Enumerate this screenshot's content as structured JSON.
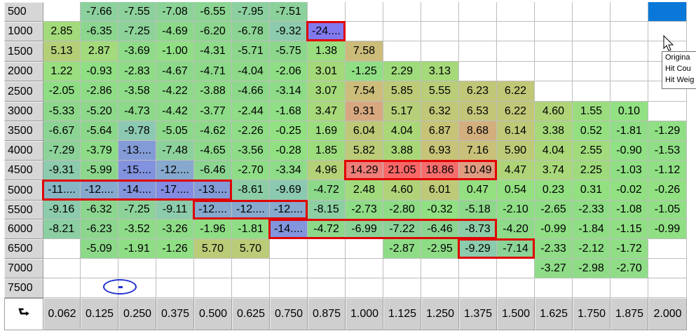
{
  "corner_icon": "axis-corner-icon",
  "corner_glyph": "⮑",
  "rows": [
    "500",
    "1000",
    "1500",
    "2000",
    "2500",
    "3000",
    "3500",
    "4000",
    "4500",
    "5000",
    "5500",
    "6000",
    "6500",
    "7000",
    "7500"
  ],
  "cols": [
    "0.062",
    "0.125",
    "0.250",
    "0.375",
    "0.500",
    "0.625",
    "0.750",
    "0.875",
    "1.000",
    "1.125",
    "1.250",
    "1.375",
    "1.500",
    "1.625",
    "1.750",
    "1.875",
    "2.000"
  ],
  "cells": [
    [
      "",
      "-7.66",
      "-7.55",
      "-7.08",
      "-6.55",
      "-7.95",
      "-7.51",
      "",
      "",
      "",
      "",
      "",
      "",
      "",
      "",
      "",
      ""
    ],
    [
      "2.85",
      "-6.35",
      "-7.25",
      "-4.69",
      "-6.20",
      "-6.78",
      "-9.32",
      "-24....",
      "",
      "",
      "",
      "",
      "",
      "",
      "",
      "",
      ""
    ],
    [
      "5.13",
      "2.87",
      "-3.69",
      "-1.00",
      "-4.31",
      "-5.71",
      "-5.75",
      "1.38",
      "7.58",
      "",
      "",
      "",
      "",
      "",
      "",
      "",
      ""
    ],
    [
      "1.22",
      "-0.93",
      "-2.83",
      "-4.67",
      "-4.71",
      "-4.04",
      "-2.06",
      "3.01",
      "-1.25",
      "2.29",
      "3.13",
      "",
      "",
      "",
      "",
      "",
      ""
    ],
    [
      "-2.05",
      "-2.86",
      "-3.58",
      "-4.22",
      "-3.88",
      "-4.66",
      "-3.14",
      "3.07",
      "7.54",
      "5.85",
      "5.55",
      "6.23",
      "6.22",
      "",
      "",
      "",
      ""
    ],
    [
      "-5.33",
      "-5.20",
      "-4.73",
      "-4.42",
      "-3.77",
      "-2.44",
      "-1.68",
      "3.47",
      "9.31",
      "5.17",
      "6.32",
      "6.53",
      "6.22",
      "4.60",
      "1.55",
      "0.10",
      ""
    ],
    [
      "-6.67",
      "-5.64",
      "-9.78",
      "-5.05",
      "-4.62",
      "-2.26",
      "-0.25",
      "1.69",
      "6.04",
      "4.04",
      "6.87",
      "8.68",
      "6.14",
      "3.38",
      "0.52",
      "-1.81",
      "-1.29"
    ],
    [
      "-7.29",
      "-3.79",
      "-13....",
      "-7.48",
      "-4.65",
      "-3.56",
      "-0.28",
      "1.85",
      "5.82",
      "3.88",
      "6.93",
      "7.16",
      "5.90",
      "4.04",
      "2.55",
      "-0.90",
      "-1.53"
    ],
    [
      "-9.31",
      "-5.99",
      "-15....",
      "-12....",
      "-6.46",
      "-2.70",
      "-3.34",
      "4.96",
      "14.29",
      "21.05",
      "18.86",
      "10.49",
      "4.47",
      "3.74",
      "2.25",
      "-1.03",
      "-1.12"
    ],
    [
      "-11....",
      "-12....",
      "-14....",
      "-17....",
      "-13....",
      "-8.61",
      "-9.69",
      "-4.72",
      "2.48",
      "4.60",
      "6.01",
      "0.47",
      "0.54",
      "0.23",
      "0.31",
      "-0.02",
      "-0.26"
    ],
    [
      "-9.16",
      "-6.32",
      "-7.25",
      "-9.11",
      "-12....",
      "-12....",
      "-12....",
      "-8.15",
      "-2.73",
      "-2.80",
      "-0.32",
      "-5.18",
      "-2.10",
      "-2.65",
      "-2.33",
      "-1.08",
      "-1.05"
    ],
    [
      "-8.21",
      "-6.23",
      "-3.52",
      "-3.26",
      "-1.96",
      "-1.81",
      "-14....",
      "-4.72",
      "-6.99",
      "-7.22",
      "-6.46",
      "-8.73",
      "-4.20",
      "-0.99",
      "-1.84",
      "-1.15",
      "-0.99"
    ],
    [
      "",
      "-5.09",
      "-1.91",
      "-1.26",
      "5.70",
      "5.70",
      "",
      "",
      "",
      "-2.87",
      "-2.95",
      "-9.29",
      "-7.14",
      "-2.33",
      "-2.12",
      "-1.72",
      ""
    ],
    [
      "",
      "",
      "",
      "",
      "",
      "",
      "",
      "",
      "",
      "",
      "",
      "",
      "",
      "-3.27",
      "-2.98",
      "-2.70",
      ""
    ],
    [
      "",
      "",
      "",
      "",
      "",
      "",
      "",
      "",
      "",
      "",
      "",
      "",
      "",
      "",
      "",
      "",
      ""
    ]
  ],
  "selected_cell": {
    "row": 0,
    "col": 16,
    "color": "#0a78d8"
  },
  "highlights": [
    {
      "row": 1,
      "col_start": 7,
      "col_end": 7
    },
    {
      "row": 8,
      "col_start": 8,
      "col_end": 11
    },
    {
      "row": 9,
      "col_start": 0,
      "col_end": 4
    },
    {
      "row": 10,
      "col_start": 4,
      "col_end": 6
    },
    {
      "row": 11,
      "col_start": 6,
      "col_end": 11
    },
    {
      "row": 12,
      "col_start": 11,
      "col_end": 12
    }
  ],
  "tooltip": {
    "lines": [
      "Origina",
      "Hit Cou",
      "Hit Weig"
    ]
  },
  "colors": {
    "highlight_border": "#e00000",
    "blank": "#ffffff",
    "header_bg": "#d6d6d6"
  }
}
